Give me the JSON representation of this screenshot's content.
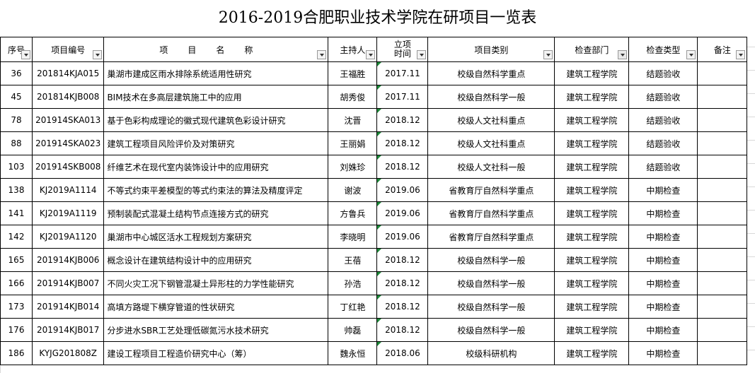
{
  "title": "2016-2019合肥职业技术学院在研项目一览表",
  "headers": [
    "序号",
    "项目编号",
    "项目名称",
    "主持人",
    "立项时间",
    "项目类别",
    "检查部门",
    "检查类型",
    "备注"
  ],
  "rows": [
    [
      "36",
      "201814KJA015",
      "巢湖市建成区雨水排除系统适用性研究",
      "王福胜",
      "2017.11",
      "校级自然科学重点",
      "建筑工程学院",
      "结题验收"
    ],
    [
      "45",
      "201814KJB008",
      "BIM技术在多高层建筑施工中的应用",
      "胡秀俊",
      "2017.11",
      "校级自然科学一般",
      "建筑工程学院",
      "结题验收"
    ],
    [
      "78",
      "201914SKA013",
      "基于色彩构成理论的徽式现代建筑色彩设计研究",
      "沈晋",
      "2018.12",
      "校级人文社科重点",
      "建筑工程学院",
      "结题验收"
    ],
    [
      "88",
      "201914SKA023",
      "建筑工程项目风险评价及对策研究",
      "王丽娟",
      "2018.12",
      "校级人文社科重点",
      "建筑工程学院",
      "结题验收"
    ],
    [
      "103",
      "201914SKB008",
      "纤维艺术在现代室内装饰设计中的应用研究",
      "刘姝珍",
      "2018.12",
      "校级人文社科一般",
      "建筑工程学院",
      "结题验收"
    ],
    [
      "138",
      "KJ2019A1114",
      "不等式约束平差模型的等式约束法的算法及精度评定",
      "谢波",
      "2019.06",
      "省教育厅自然科学重点",
      "建筑工程学院",
      "中期检查"
    ],
    [
      "141",
      "KJ2019A1119",
      "预制装配式混凝土结构节点连接方式的研究",
      "方鲁兵",
      "2019.06",
      "省教育厅自然科学重点",
      "建筑工程学院",
      "中期检查"
    ],
    [
      "142",
      "KJ2019A1120",
      "巢湖市中心城区活水工程规划方案研究",
      "李晓明",
      "2019.06",
      "省教育厅自然科学重点",
      "建筑工程学院",
      "中期检查"
    ],
    [
      "165",
      "201914KJB006",
      "概念设计在建筑结构设计中的应用研究",
      "王蓓",
      "2018.12",
      "校级自然科学一般",
      "建筑工程学院",
      "中期检查"
    ],
    [
      "166",
      "201914KJB007",
      "不同火灾工况下钢管混凝土异形柱的力学性能研究",
      "孙浩",
      "2018.12",
      "校级自然科学一般",
      "建筑工程学院",
      "中期检查"
    ],
    [
      "173",
      "201914KJB014",
      "高填方路堤下横穿管道的性状研究",
      "丁红艳",
      "2018.12",
      "校级自然科学一般",
      "建筑工程学院",
      "中期检查"
    ],
    [
      "176",
      "201914KJB017",
      "分步进水SBR工艺处理低碳氮污水技术研究",
      "帅磊",
      "2018.12",
      "校级自然科学一般",
      "建筑工程学院",
      "中期检查"
    ],
    [
      "186",
      "KYJG201808Z",
      "建设工程项目工程造价研究中心（筹）",
      "魏永恒",
      "2018.06",
      "校级科研机构",
      "建筑工程学院",
      "中期检查"
    ]
  ]
}
